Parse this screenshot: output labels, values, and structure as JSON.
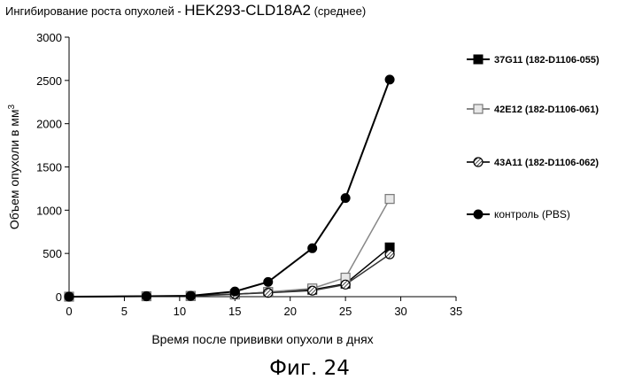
{
  "chart_data": {
    "type": "line",
    "title_part1": "Ингибирование роста опухолей - ",
    "title_part2": "HEK293-CLD18A2",
    "title_part3": " (среднее)",
    "xlabel": "Время после прививки опухоли в днях",
    "ylabel": "Объем опухоли в мм",
    "ylabel_sup": "3",
    "xlim": [
      0,
      35
    ],
    "ylim": [
      0,
      3000
    ],
    "xticks": [
      "0",
      "5",
      "10",
      "15",
      "20",
      "25",
      "30",
      "35"
    ],
    "yticks": [
      "0",
      "500",
      "1000",
      "1500",
      "2000",
      "2500",
      "3000"
    ],
    "legend_position": "right",
    "series": [
      {
        "name": "37G11 (182-D1106-055)",
        "marker": "filled-square",
        "color": "#000000",
        "x": [
          0,
          7,
          11,
          15,
          18,
          22,
          25,
          29
        ],
        "y": [
          0,
          5,
          8,
          30,
          50,
          80,
          150,
          570
        ]
      },
      {
        "name": "42E12 (182-D1106-061)",
        "marker": "open-square",
        "color": "#888888",
        "x": [
          0,
          7,
          11,
          15,
          18,
          22,
          25,
          29
        ],
        "y": [
          0,
          5,
          8,
          25,
          55,
          95,
          220,
          1130
        ]
      },
      {
        "name": "43A11 (182-D1106-062)",
        "marker": "hatched-circle",
        "color": "#333333",
        "x": [
          0,
          7,
          11,
          15,
          18,
          22,
          25,
          29
        ],
        "y": [
          0,
          5,
          8,
          30,
          45,
          70,
          140,
          490
        ]
      },
      {
        "name": "контроль (PBS)",
        "marker": "filled-circle",
        "color": "#000000",
        "x": [
          0,
          7,
          11,
          15,
          18,
          22,
          25,
          29
        ],
        "y": [
          0,
          5,
          10,
          60,
          170,
          560,
          1140,
          2510
        ]
      }
    ]
  },
  "caption": "Фиг. 24"
}
